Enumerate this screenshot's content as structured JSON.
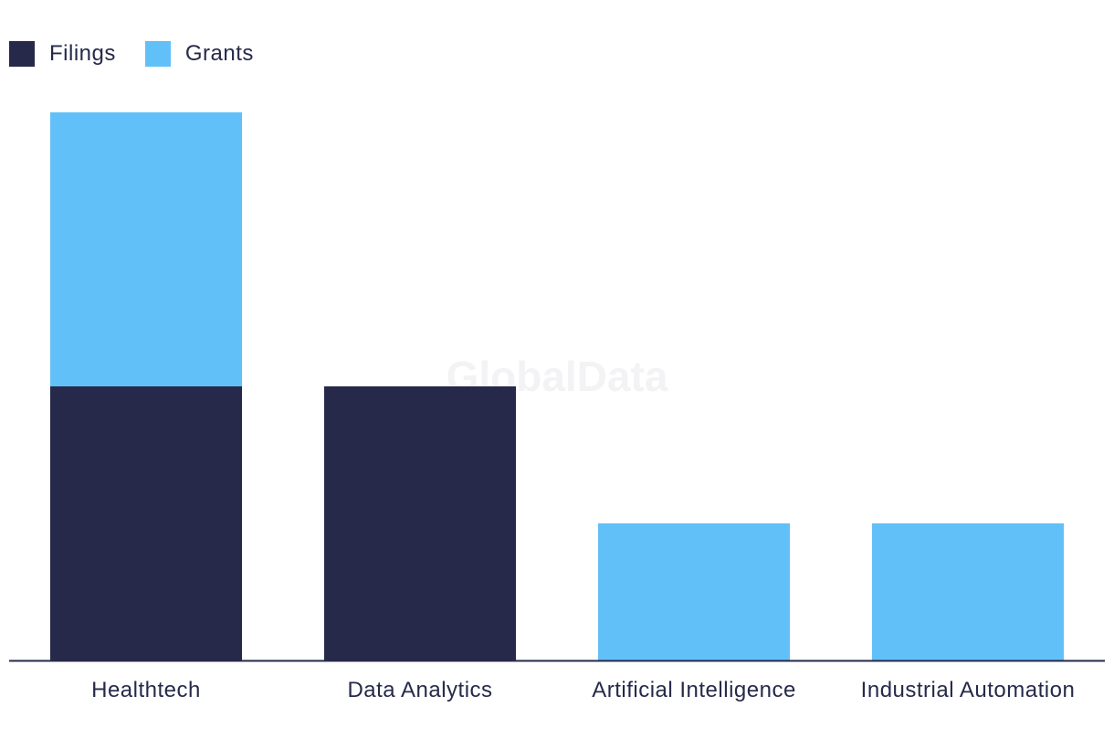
{
  "chart_data": {
    "type": "bar",
    "stacked": true,
    "categories": [
      "Healthtech",
      "Data Analytics",
      "Artificial Intelligence",
      "Industrial Automation"
    ],
    "series": [
      {
        "name": "Filings",
        "color": "#27294b",
        "values": [
          2,
          2,
          0,
          0
        ]
      },
      {
        "name": "Grants",
        "color": "#62c0f8",
        "values": [
          2,
          0,
          1,
          1
        ]
      }
    ],
    "ylim": [
      0,
      4
    ],
    "grid": false,
    "legend_position": "top-left",
    "watermark": "GlobalData"
  }
}
